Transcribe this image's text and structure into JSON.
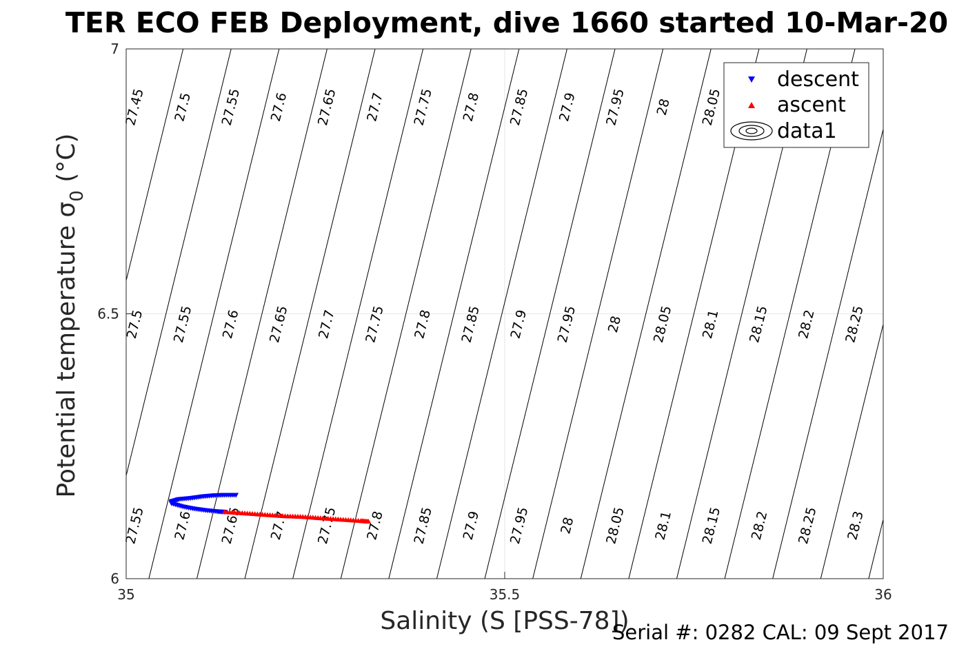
{
  "chart_data": {
    "type": "scatter",
    "title": "TER ECO FEB Deployment, dive 1660 started 10-Mar-20",
    "xlabel": "Salinity (S [PSS-78])",
    "ylabel_main": "Potential temperature σ",
    "ylabel_sub": "0",
    "ylabel_unit": " (°C)",
    "xlim": [
      35,
      36
    ],
    "ylim": [
      6,
      7
    ],
    "x_ticks": [
      35,
      35.5,
      36
    ],
    "x_tick_labels": [
      "35",
      "35.5",
      "36"
    ],
    "y_ticks": [
      6,
      6.5,
      7
    ],
    "y_tick_labels": [
      "6",
      "6.5",
      "7"
    ],
    "grid": true,
    "legend_position": "top-right",
    "legend": [
      "descent",
      "ascent",
      "data1"
    ],
    "footer": "Serial #: 0282  CAL: 09 Sept 2017",
    "colors": {
      "descent": "#0000ff",
      "ascent": "#ff0000",
      "contour": "#000000",
      "grid": "#e6e6e6",
      "axis": "#262626"
    },
    "contours": {
      "levels": [
        "27.45",
        "27.5",
        "27.55",
        "27.6",
        "27.65",
        "27.7",
        "27.75",
        "27.8",
        "27.85",
        "27.9",
        "27.95",
        "28",
        "28.05",
        "28.1",
        "28.15",
        "28.2",
        "28.25",
        "28.3"
      ],
      "label_rows": [
        {
          "y": 6.89,
          "labels": [
            "27.45",
            "27.5",
            "27.55",
            "27.6",
            "27.65",
            "27.7",
            "27.75",
            "27.8",
            "27.85",
            "27.9",
            "27.95",
            "28",
            "28.05"
          ]
        },
        {
          "y": 6.48,
          "labels": [
            "27.5",
            "27.55",
            "27.6",
            "27.65",
            "27.7",
            "27.75",
            "27.8",
            "27.85",
            "27.9",
            "27.95",
            "28",
            "28.05",
            "28.1",
            "28.15",
            "28.2",
            "28.25"
          ]
        },
        {
          "y": 6.1,
          "labels": [
            "27.55",
            "27.6",
            "27.65",
            "27.7",
            "27.75",
            "27.8",
            "27.85",
            "27.9",
            "27.95",
            "28",
            "28.05",
            "28.1",
            "28.15",
            "28.2",
            "28.25",
            "28.3"
          ]
        }
      ]
    },
    "series": [
      {
        "name": "descent",
        "marker": "triangle-down",
        "x": [
          35.145,
          35.13,
          35.115,
          35.1,
          35.085,
          35.07,
          35.06,
          35.06,
          35.075,
          35.09,
          35.105,
          35.12,
          35.13
        ],
        "y": [
          6.158,
          6.158,
          6.157,
          6.155,
          6.152,
          6.15,
          6.146,
          6.142,
          6.136,
          6.132,
          6.129,
          6.127,
          6.126
        ]
      },
      {
        "name": "ascent",
        "marker": "triangle-up",
        "x": [
          35.13,
          35.15,
          35.17,
          35.19,
          35.21,
          35.23,
          35.25,
          35.27,
          35.29,
          35.31,
          35.32
        ],
        "y": [
          6.126,
          6.124,
          6.122,
          6.12,
          6.118,
          6.117,
          6.115,
          6.113,
          6.111,
          6.109,
          6.108
        ]
      }
    ]
  }
}
